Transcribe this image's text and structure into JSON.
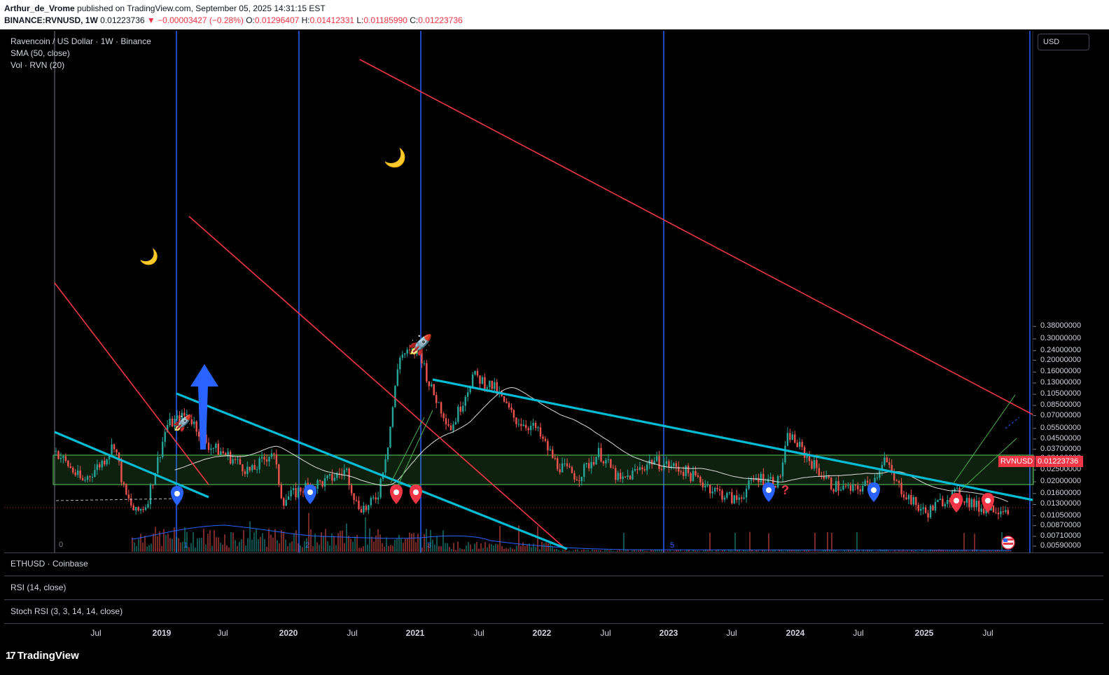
{
  "header": {
    "author": "Arthur_de_Vrome",
    "published": "published on TradingView.com, September 05, 2025 14:31:15 EST",
    "symbol": "BINANCE:RVNUSD, 1W",
    "last": "0.01223736",
    "change": "▼ −0.00003427 (−0.28%)",
    "o_label": "O:",
    "o": "0.01296407",
    "h_label": "H:",
    "h": "0.01412331",
    "l_label": "L:",
    "l": "0.01185990",
    "c_label": "C:",
    "c": "0.01223736"
  },
  "legend": {
    "title": "Ravencoin / US Dollar · 1W · Binance",
    "sma": "SMA (50, close)",
    "vol": "Vol · RVN (20)"
  },
  "panes": {
    "eth": "ETHUSD · Coinbase",
    "rsi": "RSI (14, close)",
    "stoch": "Stoch RSI (3, 3, 14, 14, close)"
  },
  "currency_button": "USD",
  "symbol_tag": "RVNUSD",
  "price_tag": "0.01223736",
  "logo": "TradingView",
  "markers": {
    "question": "?",
    "zero": "0",
    "cycle_labels": [
      "1",
      "2",
      "3",
      "5"
    ]
  },
  "colors": {
    "bull": "#26a69a",
    "bear": "#ef5350",
    "sma": "#ffffff",
    "resistance": "#f23645",
    "support": "#00bcd4",
    "vline": "#2962ff",
    "zone": "#4caf50",
    "pin_blue": "#2962ff",
    "pin_red": "#f23645"
  },
  "chart_data": {
    "type": "candlestick",
    "title": "Ravencoin / US Dollar · 1W · Binance",
    "y_scale": "log",
    "yticks": [
      "0.38000000",
      "0.30000000",
      "0.24000000",
      "0.20000000",
      "0.16000000",
      "0.13000000",
      "0.10500000",
      "0.08500000",
      "0.07000000",
      "0.05500000",
      "0.04500000",
      "0.03700000",
      "0.03100000",
      "0.02500000",
      "0.02000000",
      "0.01600000",
      "0.01300000",
      "0.01050000",
      "0.00870000",
      "0.00710000",
      "0.00590000"
    ],
    "xticks": [
      {
        "label": "Jul",
        "year": false
      },
      {
        "label": "2019",
        "year": true
      },
      {
        "label": "Jul",
        "year": false
      },
      {
        "label": "2020",
        "year": true
      },
      {
        "label": "Jul",
        "year": false
      },
      {
        "label": "2021",
        "year": true
      },
      {
        "label": "Jul",
        "year": false
      },
      {
        "label": "2022",
        "year": true
      },
      {
        "label": "Jul",
        "year": false
      },
      {
        "label": "2023",
        "year": true
      },
      {
        "label": "Jul",
        "year": false
      },
      {
        "label": "2024",
        "year": true
      },
      {
        "label": "Jul",
        "year": false
      },
      {
        "label": "2025",
        "year": true
      },
      {
        "label": "Jul",
        "year": false
      }
    ],
    "close_path": [
      {
        "date": "2018-03",
        "close": 0.045
      },
      {
        "date": "2018-05",
        "close": 0.04
      },
      {
        "date": "2018-08",
        "close": 0.02
      },
      {
        "date": "2018-10",
        "close": 0.03
      },
      {
        "date": "2018-11",
        "close": 0.042
      },
      {
        "date": "2018-12",
        "close": 0.016
      },
      {
        "date": "2019-01",
        "close": 0.011
      },
      {
        "date": "2019-02",
        "close": 0.013
      },
      {
        "date": "2019-03",
        "close": 0.026
      },
      {
        "date": "2019-04",
        "close": 0.058
      },
      {
        "date": "2019-06",
        "close": 0.072
      },
      {
        "date": "2019-08",
        "close": 0.04
      },
      {
        "date": "2019-10",
        "close": 0.032
      },
      {
        "date": "2019-12",
        "close": 0.024
      },
      {
        "date": "2020-02",
        "close": 0.036
      },
      {
        "date": "2020-03",
        "close": 0.014
      },
      {
        "date": "2020-05",
        "close": 0.018
      },
      {
        "date": "2020-07",
        "close": 0.02
      },
      {
        "date": "2020-09",
        "close": 0.025
      },
      {
        "date": "2020-10",
        "close": 0.013
      },
      {
        "date": "2020-11",
        "close": 0.012
      },
      {
        "date": "2020-12",
        "close": 0.016
      },
      {
        "date": "2021-01",
        "close": 0.045
      },
      {
        "date": "2021-02",
        "close": 0.22
      },
      {
        "date": "2021-04",
        "close": 0.24
      },
      {
        "date": "2021-05",
        "close": 0.12
      },
      {
        "date": "2021-07",
        "close": 0.055
      },
      {
        "date": "2021-09",
        "close": 0.15
      },
      {
        "date": "2021-11",
        "close": 0.12
      },
      {
        "date": "2022-01",
        "close": 0.065
      },
      {
        "date": "2022-03",
        "close": 0.055
      },
      {
        "date": "2022-05",
        "close": 0.028
      },
      {
        "date": "2022-07",
        "close": 0.022
      },
      {
        "date": "2022-09",
        "close": 0.035
      },
      {
        "date": "2022-11",
        "close": 0.02
      },
      {
        "date": "2023-02",
        "close": 0.03
      },
      {
        "date": "2023-05",
        "close": 0.025
      },
      {
        "date": "2023-08",
        "close": 0.017
      },
      {
        "date": "2023-10",
        "close": 0.014
      },
      {
        "date": "2023-12",
        "close": 0.022
      },
      {
        "date": "2024-02",
        "close": 0.02
      },
      {
        "date": "2024-03",
        "close": 0.05
      },
      {
        "date": "2024-05",
        "close": 0.03
      },
      {
        "date": "2024-07",
        "close": 0.019
      },
      {
        "date": "2024-09",
        "close": 0.017
      },
      {
        "date": "2024-11",
        "close": 0.02
      },
      {
        "date": "2024-12",
        "close": 0.032
      },
      {
        "date": "2025-01",
        "close": 0.02
      },
      {
        "date": "2025-03",
        "close": 0.013
      },
      {
        "date": "2025-04",
        "close": 0.011
      },
      {
        "date": "2025-06",
        "close": 0.015
      },
      {
        "date": "2025-07",
        "close": 0.016
      },
      {
        "date": "2025-09",
        "close": 0.01223736
      }
    ],
    "last_price": 0.01223736,
    "grid": false,
    "legend": "top-left"
  }
}
